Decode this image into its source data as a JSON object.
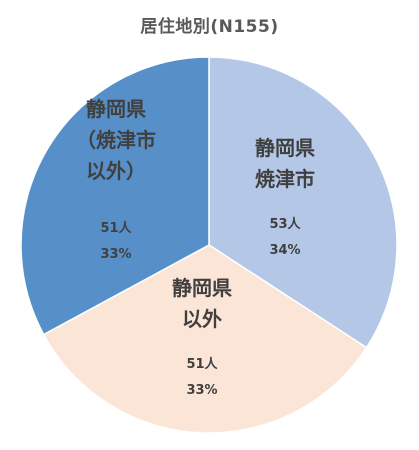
{
  "chart_data": {
    "type": "pie",
    "title": "居住地別(N155)",
    "slices": [
      {
        "label_lines": [
          "静岡県",
          "焼津市"
        ],
        "count": "53人",
        "percent": "34%",
        "value": 53,
        "color": "#b4c7e7"
      },
      {
        "label_lines": [
          "静岡県",
          "以外"
        ],
        "count": "51人",
        "percent": "33%",
        "value": 51,
        "color": "#fbe5d6"
      },
      {
        "label_lines": [
          "静岡県",
          "（焼津市",
          "以外）"
        ],
        "count": "51人",
        "percent": "33%",
        "value": 51,
        "color": "#5790c9"
      }
    ],
    "start_angle_deg": 0,
    "direction": "clockwise",
    "legend": "none"
  }
}
